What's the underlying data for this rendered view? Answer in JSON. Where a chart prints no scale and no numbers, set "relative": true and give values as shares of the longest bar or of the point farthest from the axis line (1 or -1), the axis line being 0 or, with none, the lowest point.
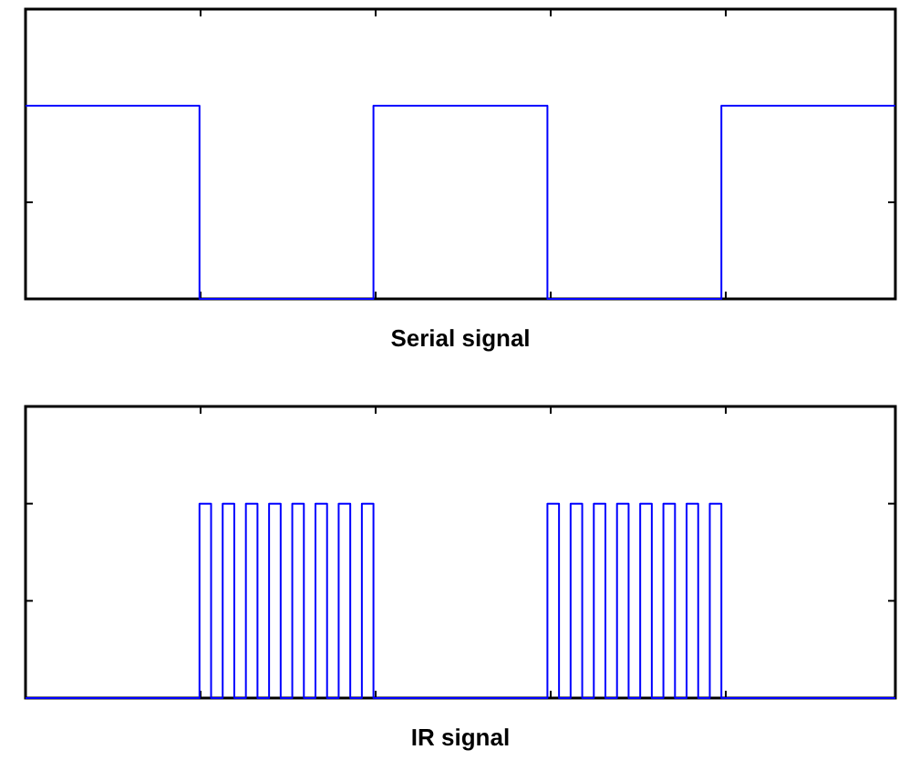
{
  "chart_data": [
    {
      "type": "step",
      "xlabel": "Serial signal",
      "relative": true,
      "categories": [
        null,
        null,
        null,
        null,
        null,
        null
      ],
      "series": [
        {
          "color": "#0000ff",
          "values": [
            1,
            0,
            1,
            0,
            1,
            1
          ]
        }
      ]
    },
    {
      "type": "step",
      "xlabel": "IR signal",
      "relative": true,
      "categories": [
        null,
        null,
        null,
        null,
        null,
        null,
        null,
        null,
        null,
        null,
        null,
        null,
        null,
        null,
        null,
        null,
        null,
        null,
        null,
        null,
        null,
        null,
        null,
        null,
        null,
        null,
        null,
        null,
        null,
        null,
        null,
        null,
        null,
        null,
        null,
        null,
        null,
        null,
        null,
        null,
        null,
        null,
        null,
        null,
        null,
        null,
        null,
        null,
        null,
        null,
        null,
        null,
        null,
        null,
        null,
        null,
        null,
        null,
        null,
        null,
        null,
        null,
        null,
        null,
        null,
        null,
        null,
        null,
        null,
        null,
        null,
        null,
        null,
        null,
        null,
        null
      ],
      "series": [
        {
          "color": "#0000ff",
          "values": [
            0,
            0,
            0,
            0,
            0,
            0,
            0,
            0,
            0,
            0,
            0,
            0,
            0,
            0,
            0,
            1,
            0,
            1,
            0,
            1,
            0,
            1,
            0,
            1,
            0,
            1,
            0,
            1,
            0,
            1,
            0,
            0,
            0,
            0,
            0,
            0,
            0,
            0,
            0,
            0,
            0,
            0,
            0,
            0,
            0,
            1,
            0,
            1,
            0,
            1,
            0,
            1,
            0,
            1,
            0,
            1,
            0,
            1,
            0,
            1,
            0,
            0,
            0,
            0,
            0,
            0,
            0,
            0,
            0,
            0,
            0,
            0,
            0,
            0,
            0,
            0
          ]
        }
      ]
    }
  ]
}
